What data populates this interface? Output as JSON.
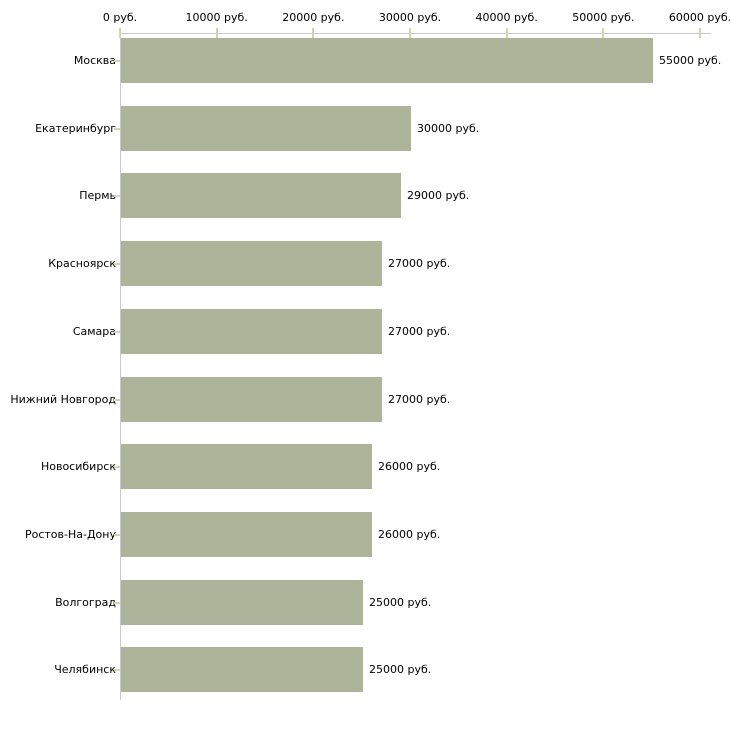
{
  "chart_data": {
    "type": "bar",
    "orientation": "horizontal",
    "title": "",
    "xlabel": "",
    "ylabel": "",
    "unit": "руб.",
    "categories": [
      "Москва",
      "Екатеринбург",
      "Пермь",
      "Красноярск",
      "Самара",
      "Нижний Новгород",
      "Новосибирск",
      "Ростов-На-Дону",
      "Волгоград",
      "Челябинск"
    ],
    "values": [
      55000,
      30000,
      29000,
      27000,
      27000,
      27000,
      26000,
      26000,
      25000,
      25000
    ],
    "bar_labels": [
      "55000 руб.",
      "30000 руб.",
      "29000 руб.",
      "27000 руб.",
      "27000 руб.",
      "27000 руб.",
      "26000 руб.",
      "26000 руб.",
      "25000 руб.",
      "25000 руб."
    ],
    "x_ticks": [
      0,
      10000,
      20000,
      30000,
      40000,
      50000,
      60000
    ],
    "x_tick_labels": [
      "0 руб.",
      "10000 руб.",
      "20000 руб.",
      "30000 руб.",
      "40000 руб.",
      "50000 руб.",
      "60000 руб."
    ],
    "xlim": [
      0,
      61000
    ],
    "grid": false,
    "legend": false,
    "bar_color": "#aeb49a",
    "axis_line_color": "#c9c9c9",
    "tick_mark_color": "#d6d6ae",
    "text_color": "#000000",
    "background_color": "#ffffff"
  }
}
